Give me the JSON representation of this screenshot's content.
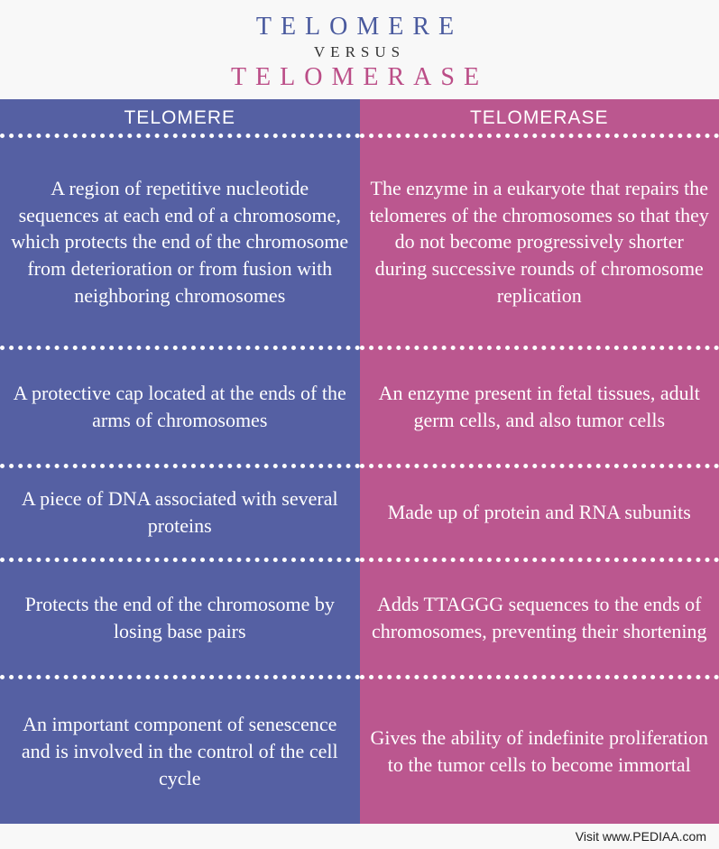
{
  "header": {
    "title_a": "TELOMERE",
    "versus": "VERSUS",
    "title_b": "TELOMERASE",
    "title_a_color": "#4a5a9e",
    "title_b_color": "#bb4d87"
  },
  "columns": {
    "left": {
      "header": "TELOMERE",
      "bg_color": "#5560a3",
      "cells": [
        "A region of repetitive nucleotide sequences at each end of a chromosome, which protects the end of the chromosome from deterioration or from fusion with neighboring chromosomes",
        "A protective cap located at the ends of the arms of chromosomes",
        "A piece of DNA associated with several proteins",
        "Protects the end of the chromosome by losing base pairs",
        "An important component of senescence and is involved in the control of the cell cycle"
      ]
    },
    "right": {
      "header": "TELOMERASE",
      "bg_color": "#bb578f",
      "cells": [
        "The enzyme in a eukaryote that repairs the telomeres of the chromosomes so that they do not become progressively shorter during successive rounds of chromosome replication",
        "An enzyme present in fetal tissues, adult germ cells, and also tumor cells",
        "Made up of protein and RNA subunits",
        "Adds TTAGGG sequences to the ends of chromosomes, preventing their shortening",
        "Gives the ability of indefinite proliferation to the tumor cells to become immortal"
      ]
    }
  },
  "row_flex": [
    2.4,
    1.2,
    0.9,
    1.2,
    1.6
  ],
  "footer": "Visit www.PEDIAA.com"
}
